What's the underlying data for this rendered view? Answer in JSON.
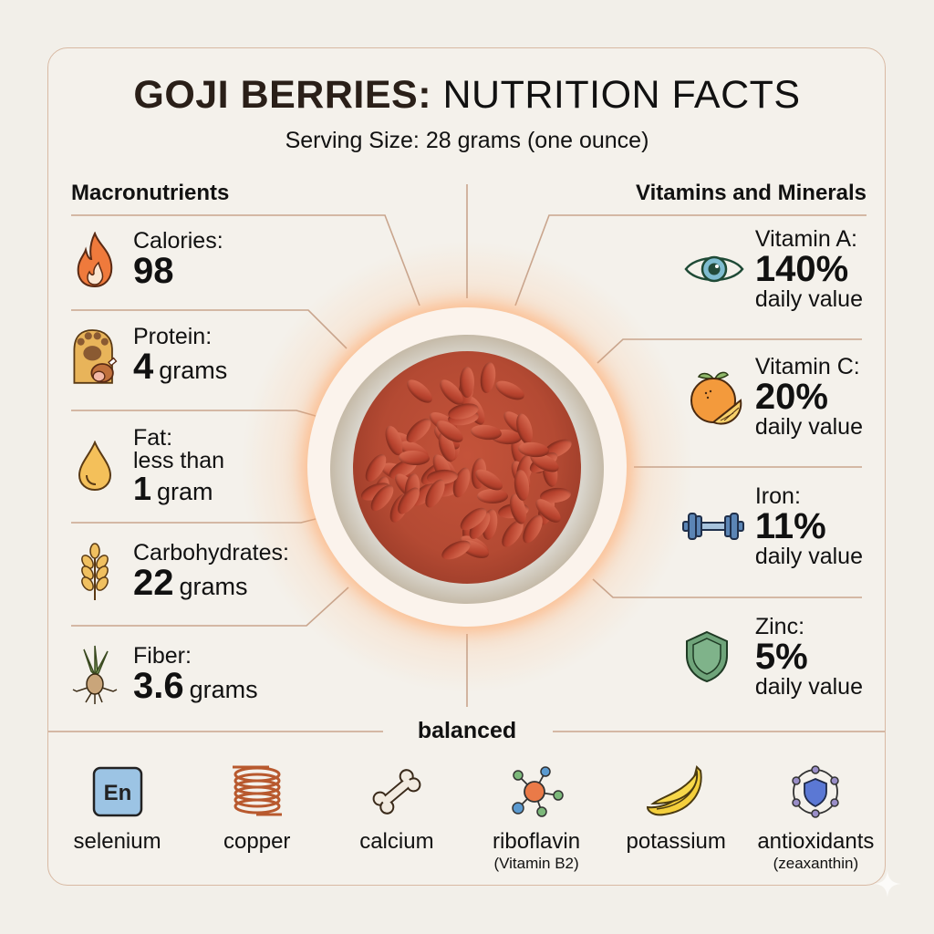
{
  "header": {
    "title_bold": "GOJI BERRIES:",
    "title_light": "NUTRITION FACTS",
    "subtitle": "Serving Size: 28 grams (one ounce)"
  },
  "macronutrients": {
    "heading": "Macronutrients",
    "items": [
      {
        "icon": "flame-icon",
        "label": "Calories:",
        "value": "98",
        "unit": ""
      },
      {
        "icon": "paw-meat-icon",
        "label": "Protein:",
        "value": "4",
        "unit": "grams"
      },
      {
        "icon": "oil-drop-icon",
        "label": "Fat:",
        "label2": "less than",
        "value": "1",
        "unit": "gram"
      },
      {
        "icon": "wheat-icon",
        "label": "Carbohydrates:",
        "value": "22",
        "unit": "grams"
      },
      {
        "icon": "root-sprout-icon",
        "label": "Fiber:",
        "value": "3.6",
        "unit": "grams"
      }
    ]
  },
  "vitamins": {
    "heading": "Vitamins and Minerals",
    "items": [
      {
        "icon": "eye-icon",
        "label": "Vitamin A:",
        "value": "140%",
        "sub": "daily value"
      },
      {
        "icon": "orange-icon",
        "label": "Vitamin C:",
        "value": "20%",
        "sub": "daily value"
      },
      {
        "icon": "dumbbell-icon",
        "label": "Iron:",
        "value": "11%",
        "sub": "daily value"
      },
      {
        "icon": "shield-icon",
        "label": "Zinc:",
        "value": "5%",
        "sub": "daily value"
      }
    ]
  },
  "center_image": {
    "description": "bowl of dried goji berries"
  },
  "footer": {
    "heading": "balanced",
    "items": [
      {
        "icon": "element-tile-icon",
        "tile_text": "En",
        "name": "selenium",
        "note": ""
      },
      {
        "icon": "copper-coil-icon",
        "name": "copper",
        "note": ""
      },
      {
        "icon": "bone-icon",
        "name": "calcium",
        "note": ""
      },
      {
        "icon": "molecule-icon",
        "name": "riboflavin",
        "note": "(Vitamin B2)"
      },
      {
        "icon": "banana-icon",
        "name": "potassium",
        "note": ""
      },
      {
        "icon": "shield-molecule-icon",
        "name": "antioxidants",
        "note": "(zeaxanthin)"
      }
    ]
  },
  "colors": {
    "background": "#f2efe9",
    "card": "#f4f1eb",
    "border": "#d8b9a3",
    "line": "#c9a58d",
    "glow": "#ff9646",
    "text": "#111111",
    "title_dark": "#2a1f18"
  }
}
